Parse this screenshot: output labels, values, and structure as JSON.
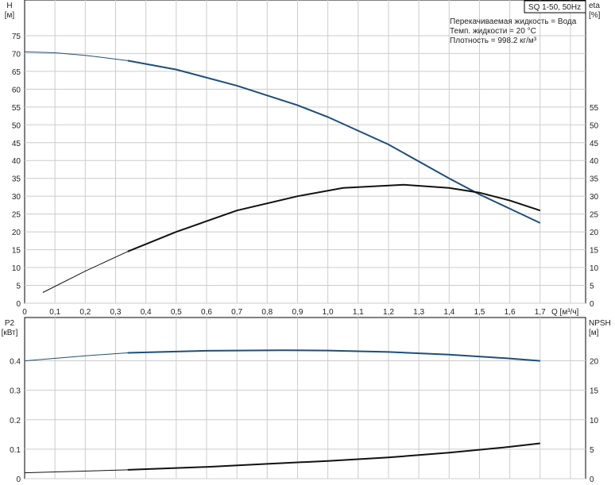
{
  "chart_data": [
    {
      "type": "line",
      "title": "SQ 1-50, 50Hz",
      "notes": [
        "Перекачиваемая жидкость = Вода",
        "Темп. жидкости = 20 °C",
        "Плотность = 998.2 кг/м³"
      ],
      "xlabel": "Q [м³/ч]",
      "ylabel": [
        "H",
        "[м]"
      ],
      "y2label": [
        "eta",
        "[%]"
      ],
      "xlim": [
        0,
        1.85
      ],
      "ylim": [
        0,
        85
      ],
      "y2lim": [
        0,
        85
      ],
      "xticks": [
        "0",
        "0,1",
        "0,2",
        "0,3",
        "0,4",
        "0,5",
        "0,6",
        "0,7",
        "0,8",
        "0,9",
        "1,0",
        "1,1",
        "1,2",
        "1,3",
        "1,4",
        "1,5",
        "1,6",
        "1,7"
      ],
      "yticks": [
        0,
        5,
        10,
        15,
        20,
        25,
        30,
        35,
        40,
        45,
        50,
        55,
        60,
        65,
        70,
        75
      ],
      "y2ticks": [
        0,
        5,
        10,
        15,
        20,
        25,
        30,
        35,
        40,
        45,
        50,
        55
      ],
      "grid": true,
      "series": [
        {
          "axis": "left",
          "color": "#1f4e79",
          "x": [
            0,
            0.1,
            0.2,
            0.34,
            0.5,
            0.7,
            0.9,
            1.0,
            1.2,
            1.4,
            1.5,
            1.6,
            1.7
          ],
          "y": [
            70.5,
            70.2,
            69.5,
            68,
            65.5,
            61,
            55.5,
            52.2,
            44.5,
            35,
            30.5,
            26.5,
            22.5
          ]
        },
        {
          "axis": "right",
          "color": "#111111",
          "x": [
            0.06,
            0.2,
            0.34,
            0.5,
            0.7,
            0.9,
            1.05,
            1.25,
            1.4,
            1.5,
            1.6,
            1.7
          ],
          "y": [
            3,
            9,
            14.5,
            20,
            26,
            30,
            32.3,
            33.2,
            32.3,
            31,
            28.8,
            26
          ]
        }
      ]
    },
    {
      "type": "line",
      "xlim": [
        0,
        1.85
      ],
      "ylabel": [
        "P2",
        "[кВт]"
      ],
      "y2label": [
        "NPSH",
        "[м]"
      ],
      "ylim": [
        0,
        0.45
      ],
      "y2lim": [
        0,
        22.5
      ],
      "yticks": [
        "0",
        "0.1",
        "0.2",
        "0.3",
        "0.4"
      ],
      "y2ticks": [
        0,
        5,
        10,
        15,
        20
      ],
      "grid": true,
      "series": [
        {
          "axis": "left",
          "color": "#1f4e79",
          "x": [
            0,
            0.2,
            0.34,
            0.6,
            0.85,
            1.0,
            1.2,
            1.4,
            1.6,
            1.7
          ],
          "y": [
            0.4,
            0.417,
            0.427,
            0.434,
            0.436,
            0.435,
            0.43,
            0.421,
            0.408,
            0.4
          ]
        },
        {
          "axis": "right",
          "color": "#111111",
          "x": [
            0,
            0.34,
            0.6,
            0.8,
            1.0,
            1.2,
            1.4,
            1.6,
            1.7
          ],
          "y": [
            1,
            1.5,
            2,
            2.5,
            3,
            3.6,
            4.4,
            5.4,
            6
          ]
        }
      ]
    }
  ]
}
